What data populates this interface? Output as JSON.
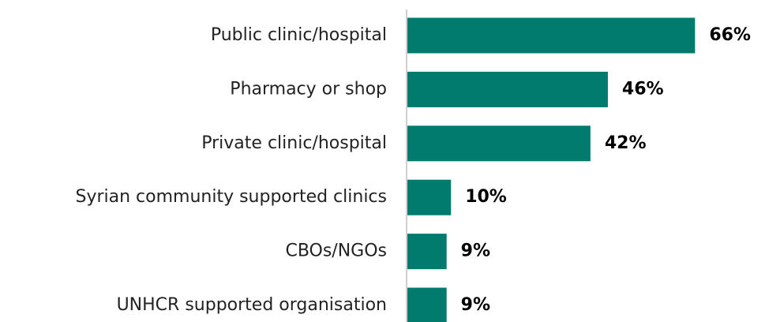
{
  "chart_data": {
    "type": "bar",
    "orientation": "horizontal",
    "categories": [
      "Public clinic/hospital",
      "Pharmacy or shop",
      "Private clinic/hospital",
      "Syrian community supported clinics",
      "CBOs/NGOs",
      "UNHCR supported organisation"
    ],
    "values": [
      66,
      46,
      42,
      10,
      9,
      9
    ],
    "value_labels": [
      "66%",
      "46%",
      "42%",
      "10%",
      "9%",
      "9%"
    ],
    "color": "#007b6e"
  }
}
